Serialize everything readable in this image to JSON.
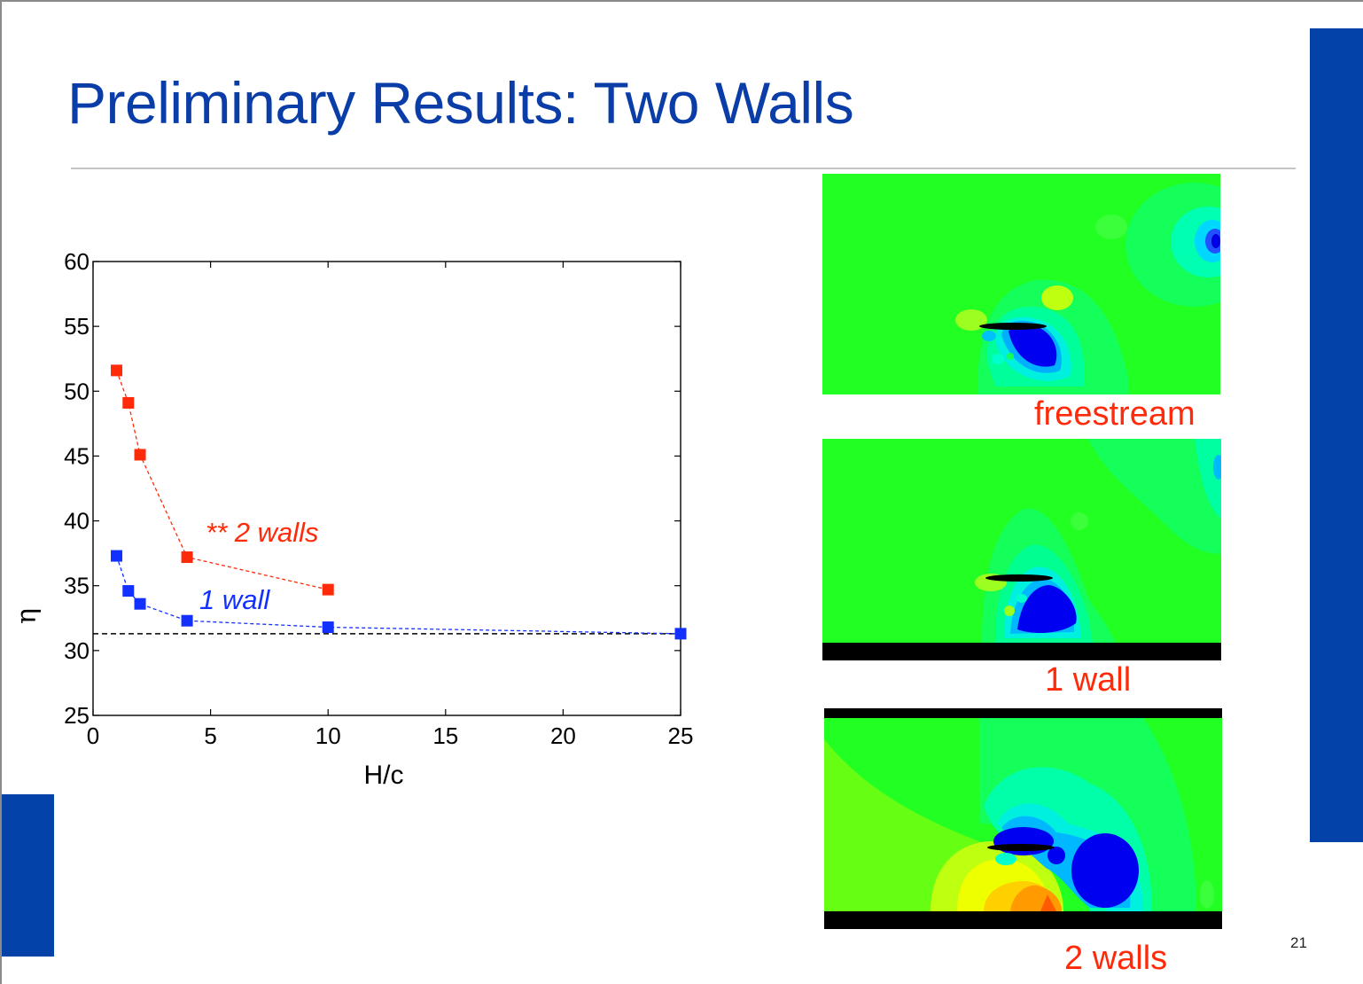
{
  "slide": {
    "title": "Preliminary Results: Two Walls",
    "number": "21",
    "accent_color": "#0342a8"
  },
  "chart_data": {
    "type": "line",
    "xlabel": "H/c",
    "ylabel": "η",
    "xlim": [
      0,
      25
    ],
    "ylim": [
      25,
      60
    ],
    "xticks": [
      0,
      5,
      10,
      15,
      20,
      25
    ],
    "yticks": [
      25,
      30,
      35,
      40,
      45,
      50,
      55,
      60
    ],
    "grid": false,
    "reference_line": {
      "y": 31.3,
      "style": "dashed",
      "color": "#000000"
    },
    "series": [
      {
        "name": "** 2 walls",
        "color": "#ff2a0a",
        "x": [
          1,
          1.5,
          2,
          4,
          10
        ],
        "y": [
          51.6,
          49.1,
          45.1,
          37.2,
          34.7
        ]
      },
      {
        "name": "1 wall",
        "color": "#1230ff",
        "x": [
          1,
          1.5,
          2,
          4,
          10,
          25
        ],
        "y": [
          37.3,
          34.6,
          33.6,
          32.3,
          31.8,
          31.3
        ]
      }
    ]
  },
  "panels": [
    {
      "id": "freestream",
      "caption": "freestream",
      "walls": "none"
    },
    {
      "id": "one-wall",
      "caption": "1 wall",
      "walls": "bottom"
    },
    {
      "id": "two-walls",
      "caption": "2 walls",
      "walls": "top-bottom"
    }
  ]
}
